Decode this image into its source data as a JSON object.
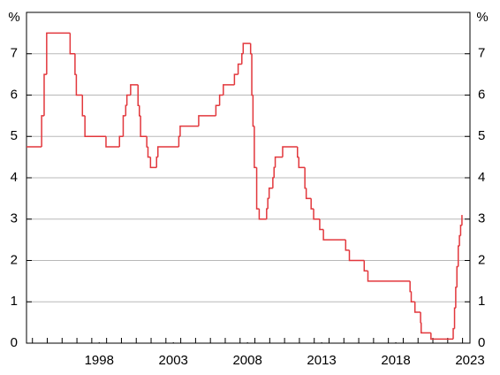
{
  "chart_data": {
    "type": "step-line",
    "y_unit": "%",
    "xlim": [
      1993.6,
      2023.5
    ],
    "ylim": [
      0,
      8
    ],
    "xticks": [
      {
        "value": 1998.5,
        "label": "1998"
      },
      {
        "value": 2003.5,
        "label": "2003"
      },
      {
        "value": 2008.5,
        "label": "2008"
      },
      {
        "value": 2013.5,
        "label": "2013"
      },
      {
        "value": 2018.5,
        "label": "2018"
      },
      {
        "value": 2023.5,
        "label": "2023"
      }
    ],
    "xminorticks": [
      1994,
      1995,
      1996,
      1997,
      1998,
      1999,
      2000,
      2001,
      2002,
      2003,
      2004,
      2005,
      2006,
      2007,
      2008,
      2009,
      2010,
      2011,
      2012,
      2013,
      2014,
      2015,
      2016,
      2017,
      2018,
      2019,
      2020,
      2021,
      2022,
      2023
    ],
    "yticks": [
      0,
      1,
      2,
      3,
      4,
      5,
      6,
      7
    ],
    "grid": true,
    "series": [
      {
        "color": "#e2373c",
        "x": [
          1993.6,
          1994.62,
          1994.79,
          1994.96,
          1996.54,
          1996.87,
          1996.96,
          1997.37,
          1997.54,
          1998.96,
          1999.87,
          2000.12,
          2000.29,
          2000.37,
          2000.62,
          2001.12,
          2001.21,
          2001.29,
          2001.71,
          2001.79,
          2001.96,
          2002.37,
          2002.46,
          2003.87,
          2003.96,
          2005.21,
          2006.37,
          2006.62,
          2006.87,
          2007.62,
          2007.87,
          2008.12,
          2008.21,
          2008.71,
          2008.79,
          2008.87,
          2008.96,
          2009.12,
          2009.29,
          2009.79,
          2009.87,
          2009.96,
          2010.21,
          2010.29,
          2010.37,
          2010.87,
          2011.87,
          2011.96,
          2012.37,
          2012.46,
          2012.79,
          2012.96,
          2013.37,
          2013.62,
          2015.12,
          2015.37,
          2016.37,
          2016.62,
          2019.46,
          2019.54,
          2019.79,
          2020.17,
          2020.21,
          2020.87,
          2022.37,
          2022.46,
          2022.54,
          2022.62,
          2022.71,
          2022.79,
          2022.87,
          2022.96
        ],
        "values": [
          4.75,
          5.5,
          6.5,
          7.5,
          7.0,
          6.5,
          6.0,
          5.5,
          5.0,
          4.75,
          5.0,
          5.5,
          5.75,
          6.0,
          6.25,
          5.75,
          5.5,
          5.0,
          4.75,
          4.5,
          4.25,
          4.5,
          4.75,
          5.0,
          5.25,
          5.5,
          5.75,
          6.0,
          6.25,
          6.5,
          6.75,
          7.0,
          7.25,
          7.0,
          6.0,
          5.25,
          4.25,
          3.25,
          3.0,
          3.25,
          3.5,
          3.75,
          4.0,
          4.25,
          4.5,
          4.75,
          4.5,
          4.25,
          3.75,
          3.5,
          3.25,
          3.0,
          2.75,
          2.5,
          2.25,
          2.0,
          1.75,
          1.5,
          1.25,
          1.0,
          0.75,
          0.5,
          0.25,
          0.1,
          0.35,
          0.85,
          1.35,
          1.85,
          2.35,
          2.6,
          2.85,
          3.1
        ]
      }
    ]
  }
}
